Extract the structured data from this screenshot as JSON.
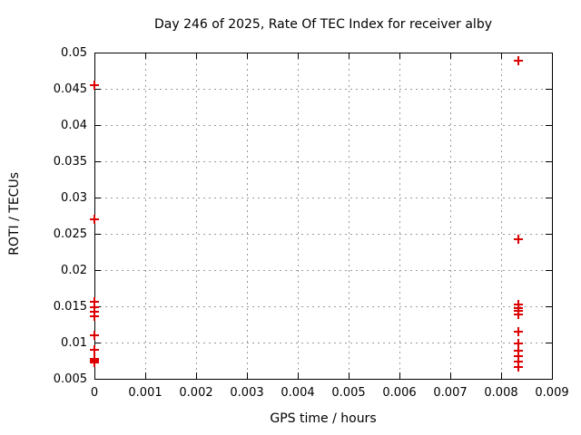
{
  "chart_data": {
    "type": "scatter",
    "title": "Day 246 of 2025, Rate Of TEC Index for receiver alby",
    "xlabel": "GPS time / hours",
    "ylabel": "ROTI / TECUs",
    "xlim": [
      0,
      0.009
    ],
    "ylim": [
      0.005,
      0.05
    ],
    "xticks": [
      0,
      0.001,
      0.002,
      0.003,
      0.004,
      0.005,
      0.006,
      0.007,
      0.008,
      0.009
    ],
    "xtick_labels": [
      "0",
      "0.001",
      "0.002",
      "0.003",
      "0.004",
      "0.005",
      "0.006",
      "0.007",
      "0.008",
      "0.009"
    ],
    "yticks": [
      0.005,
      0.01,
      0.015,
      0.02,
      0.025,
      0.03,
      0.035,
      0.04,
      0.045,
      0.05
    ],
    "ytick_labels": [
      "0.005",
      "0.01",
      "0.015",
      "0.02",
      "0.025",
      "0.03",
      "0.035",
      "0.04",
      "0.045",
      "0.05"
    ],
    "grid": true,
    "legend": "none",
    "background": "#ffffff",
    "marker": "plus",
    "marker_color": "#dd0000",
    "series": [
      {
        "name": "ROTI",
        "color": "#dd0000",
        "points": [
          [
            0,
            0.0455
          ],
          [
            0,
            0.027
          ],
          [
            0,
            0.0156
          ],
          [
            0,
            0.0149
          ],
          [
            0,
            0.0143
          ],
          [
            0,
            0.0136
          ],
          [
            0,
            0.011
          ],
          [
            0,
            0.009
          ],
          [
            0,
            0.0078
          ],
          [
            0,
            0.0077
          ],
          [
            0,
            0.0076
          ],
          [
            0,
            0.0075
          ],
          [
            0,
            0.0074
          ],
          [
            0,
            0.0073
          ],
          [
            0,
            0.0072
          ],
          [
            0.008333,
            0.0489
          ],
          [
            0.008333,
            0.0243
          ],
          [
            0.008333,
            0.0152
          ],
          [
            0.008333,
            0.0148
          ],
          [
            0.008333,
            0.0144
          ],
          [
            0.008333,
            0.0139
          ],
          [
            0.008333,
            0.0115
          ],
          [
            0.008333,
            0.0099
          ],
          [
            0.008333,
            0.0089
          ],
          [
            0.008333,
            0.0081
          ],
          [
            0.008333,
            0.0074
          ],
          [
            0.008333,
            0.0066
          ]
        ]
      }
    ]
  }
}
